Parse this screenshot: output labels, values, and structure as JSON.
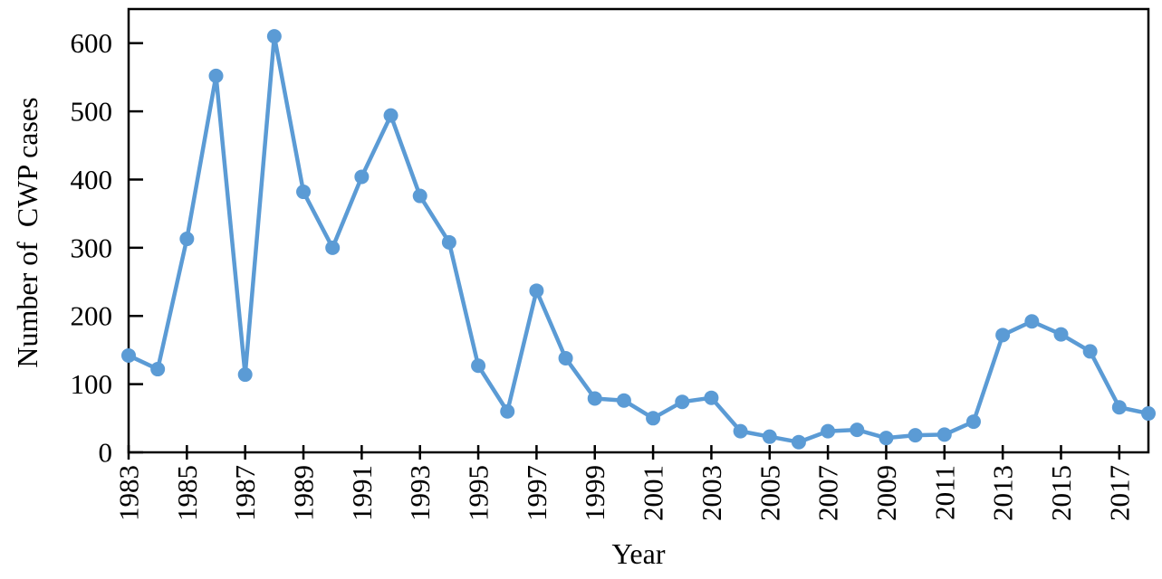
{
  "page": {
    "background": "#ffffff"
  },
  "chart_data": {
    "type": "line",
    "title": "",
    "xlabel": "Year",
    "ylabel": "Number of  CWP cases",
    "legend": "none",
    "grid": false,
    "x": [
      1983,
      1984,
      1985,
      1986,
      1987,
      1988,
      1989,
      1990,
      1991,
      1992,
      1993,
      1994,
      1995,
      1996,
      1997,
      1998,
      1999,
      2000,
      2001,
      2002,
      2003,
      2004,
      2005,
      2006,
      2007,
      2008,
      2009,
      2010,
      2011,
      2012,
      2013,
      2014,
      2015,
      2016,
      2017,
      2018
    ],
    "series": [
      {
        "name": "Number of CWP cases",
        "color": "#5B9BD5",
        "marker": "circle",
        "values": [
          142,
          122,
          313,
          552,
          114,
          610,
          382,
          300,
          404,
          494,
          376,
          308,
          127,
          60,
          237,
          138,
          79,
          76,
          50,
          74,
          80,
          31,
          23,
          15,
          31,
          33,
          21,
          25,
          26,
          45,
          172,
          192,
          173,
          148,
          66,
          57
        ]
      }
    ],
    "ylim": [
      0,
      650
    ],
    "yticks": [
      0,
      100,
      200,
      300,
      400,
      500,
      600
    ],
    "xtick_start": 1983,
    "xtick_step": 2,
    "xtick_end": 2017,
    "axis_color": "#000000",
    "tick_label_color": "#000000"
  }
}
